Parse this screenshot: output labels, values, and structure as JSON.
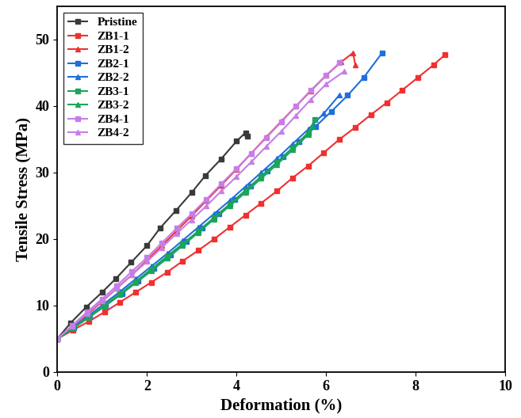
{
  "chart_data": {
    "type": "line",
    "x_label": "Deformation (%)",
    "y_label": "Tensile Stress (MPa)",
    "xlim": [
      0,
      10
    ],
    "xticks": [
      0,
      2,
      4,
      6,
      8,
      10
    ],
    "ylim": [
      0,
      55
    ],
    "yticks": [
      0,
      10,
      20,
      30,
      40,
      50
    ],
    "grid": false,
    "legend": "upper left",
    "series": [
      {
        "name": "Pristine",
        "color": "#3a3a3a",
        "marker": "square",
        "line_style": "solid",
        "x": [
          0,
          0.3,
          0.65,
          1,
          1.3,
          1.65,
          2,
          2.3,
          2.65,
          3,
          3.3,
          3.65,
          4,
          4.2,
          4.25
        ],
        "values": [
          5,
          7.4,
          9.8,
          12,
          14,
          16.5,
          19,
          21.7,
          24.3,
          27,
          29.5,
          32,
          34.7,
          36,
          35.5
        ]
      },
      {
        "name": "ZB1-1",
        "color": "#f03030",
        "marker": "square",
        "line_style": "solid",
        "x": [
          0,
          0.35,
          0.7,
          1.05,
          1.4,
          1.75,
          2.1,
          2.45,
          2.8,
          3.15,
          3.5,
          3.85,
          4.2,
          4.55,
          4.9,
          5.25,
          5.6,
          5.95,
          6.3,
          6.65,
          7,
          7.35,
          7.7,
          8.05,
          8.4,
          8.65
        ],
        "values": [
          5,
          6.3,
          7.6,
          9,
          10.5,
          12,
          13.5,
          15,
          16.7,
          18.3,
          20,
          21.8,
          23.6,
          25.4,
          27.2,
          29.2,
          31,
          33,
          35,
          36.8,
          38.7,
          40.5,
          42.4,
          44.3,
          46.2,
          47.7
        ]
      },
      {
        "name": "ZB1-2",
        "color": "#f03030",
        "marker": "triangle",
        "line_style": "solid",
        "x": [
          0,
          0.33,
          0.66,
          1,
          1.33,
          1.66,
          2,
          2.33,
          2.66,
          3,
          3.33,
          3.66,
          4,
          4.33,
          4.66,
          5,
          5.33,
          5.66,
          6,
          6.33,
          6.6,
          6.65
        ],
        "values": [
          5,
          6.8,
          8.6,
          10.6,
          12.6,
          14.6,
          16.8,
          19,
          21.2,
          23.5,
          25.8,
          28.1,
          30.5,
          32.9,
          35.3,
          37.7,
          40,
          42.3,
          44.6,
          46.6,
          48,
          46.2
        ]
      },
      {
        "name": "ZB2-1",
        "color": "#1f6fdc",
        "marker": "square",
        "line_style": "solid",
        "x": [
          0,
          0.36,
          0.72,
          1.08,
          1.44,
          1.8,
          2.16,
          2.52,
          2.88,
          3.24,
          3.6,
          3.96,
          4.32,
          4.68,
          5.04,
          5.4,
          5.76,
          6.12,
          6.48,
          6.84,
          7.25
        ],
        "values": [
          5,
          6.6,
          8.3,
          10,
          11.8,
          13.7,
          15.6,
          17.6,
          19.6,
          21.7,
          23.8,
          25.9,
          28,
          30.2,
          32.4,
          34.6,
          36.9,
          39.2,
          41.6,
          44.3,
          48
        ]
      },
      {
        "name": "ZB2-2",
        "color": "#1f6fdc",
        "marker": "triangle",
        "line_style": "solid",
        "x": [
          0,
          0.35,
          0.7,
          1.05,
          1.4,
          1.75,
          2.1,
          2.45,
          2.8,
          3.15,
          3.5,
          3.85,
          4.2,
          4.55,
          4.9,
          5.25,
          5.6,
          5.95,
          6.3
        ],
        "values": [
          5,
          6.7,
          8.5,
          10.3,
          12.1,
          14,
          15.9,
          17.8,
          19.8,
          21.8,
          23.8,
          25.8,
          27.9,
          30,
          32.1,
          34.3,
          36.5,
          38.9,
          41.7
        ]
      },
      {
        "name": "ZB3-1",
        "color": "#1aa55a",
        "marker": "square",
        "line_style": "solid",
        "x": [
          0,
          0.35,
          0.7,
          1.05,
          1.4,
          1.75,
          2.1,
          2.45,
          2.8,
          3.15,
          3.5,
          3.85,
          4.2,
          4.55,
          4.9,
          5.25,
          5.6,
          5.75
        ],
        "values": [
          5,
          6.6,
          8.3,
          10,
          11.8,
          13.6,
          15.5,
          17.4,
          19.3,
          21.2,
          23.2,
          25.2,
          27.3,
          29.4,
          31.5,
          33.7,
          36,
          38
        ]
      },
      {
        "name": "ZB3-2",
        "color": "#1aa55a",
        "marker": "triangle",
        "line_style": "solid",
        "x": [
          0,
          0.35,
          0.7,
          1.05,
          1.4,
          1.75,
          2.1,
          2.45,
          2.8,
          3.15,
          3.5,
          3.85,
          4.2,
          4.55,
          4.9,
          5.25,
          5.6,
          5.7
        ],
        "values": [
          5,
          6.6,
          8.2,
          9.9,
          11.6,
          13.4,
          15.2,
          17.1,
          19,
          21,
          23,
          25,
          27,
          29.1,
          31.2,
          33.4,
          35.7,
          37
        ]
      },
      {
        "name": "ZB4-1",
        "color": "#c67ee6",
        "marker": "square",
        "line_style": "solid",
        "x": [
          0,
          0.33,
          0.66,
          1,
          1.33,
          1.66,
          2,
          2.33,
          2.66,
          3,
          3.33,
          3.66,
          4,
          4.33,
          4.66,
          5,
          5.33,
          5.66,
          6,
          6.3
        ],
        "values": [
          5,
          7,
          9,
          11,
          13,
          15.1,
          17.2,
          19.4,
          21.6,
          23.8,
          26,
          28.3,
          30.6,
          32.9,
          35.2,
          37.6,
          40,
          42.4,
          44.6,
          46.5
        ]
      },
      {
        "name": "ZB4-2",
        "color": "#c67ee6",
        "marker": "triangle",
        "line_style": "solid",
        "x": [
          0,
          0.33,
          0.66,
          1,
          1.33,
          1.66,
          2,
          2.33,
          2.66,
          3,
          3.33,
          3.66,
          4,
          4.33,
          4.66,
          5,
          5.33,
          5.66,
          6,
          6.4
        ],
        "values": [
          5,
          6.9,
          8.8,
          10.7,
          12.6,
          14.6,
          16.6,
          18.7,
          20.8,
          22.9,
          25,
          27.2,
          29.4,
          31.6,
          33.9,
          36.2,
          38.6,
          41,
          43.3,
          45.2
        ]
      }
    ]
  }
}
